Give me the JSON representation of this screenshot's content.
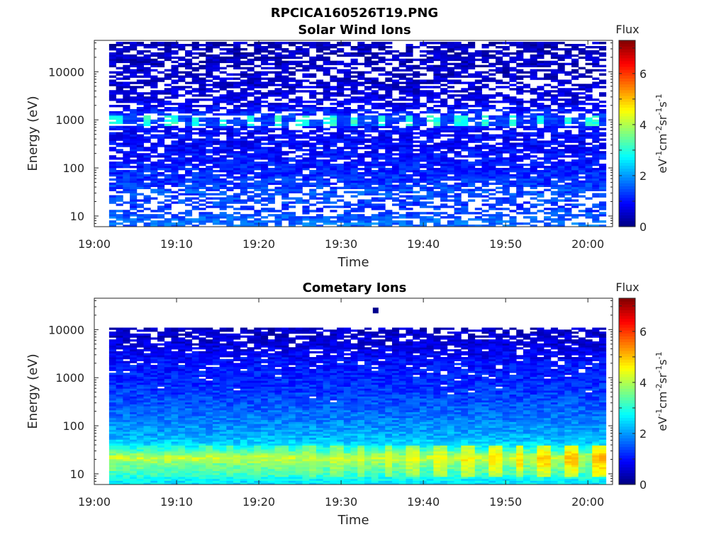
{
  "figure": {
    "title": "RPCICA160526T19.PNG"
  },
  "chart_data": [
    {
      "type": "heatmap",
      "title": "Solar Wind Ions",
      "xlabel": "Time",
      "ylabel": "Energy (eV)",
      "x_ticks": [
        "19:00",
        "19:10",
        "19:20",
        "19:30",
        "19:40",
        "19:50",
        "20:00"
      ],
      "x_range_minutes": [
        0,
        63
      ],
      "data_x_range_minutes": [
        1.8,
        62.2
      ],
      "y_scale": "log",
      "y_ticks": [
        "10",
        "100",
        "1000",
        "10000"
      ],
      "y_range": [
        6,
        45000
      ],
      "colorbar": {
        "title": "Flux",
        "label": "eV-1cm-2sr-1s-1",
        "ticks": [
          "0",
          "2",
          "4",
          "6"
        ],
        "range": [
          0,
          7.3
        ],
        "colormap": "jet"
      },
      "profile": {
        "description_values": "log flux by energy band",
        "energy_levels": [
          7,
          9,
          12,
          16,
          22,
          30,
          45,
          70,
          110,
          180,
          300,
          500,
          800,
          1000,
          1300,
          2000,
          3500,
          6000,
          10000,
          18000,
          32000
        ],
        "mean_flux": [
          1.7,
          1.6,
          1.4,
          1.3,
          1.4,
          1.5,
          1.3,
          1.2,
          1.1,
          1.0,
          0.9,
          0.9,
          0.95,
          2.6,
          1.2,
          0.8,
          0.6,
          0.55,
          0.5,
          0.45,
          0.4
        ],
        "gap_probability": [
          0.25,
          0.25,
          0.45,
          0.5,
          0.45,
          0.35,
          0.15,
          0.1,
          0.1,
          0.2,
          0.2,
          0.25,
          0.3,
          0.1,
          0.3,
          0.3,
          0.35,
          0.35,
          0.4,
          0.35,
          0.3
        ],
        "peak_band_energy": 1000,
        "peak_pulse_period_minutes": 3.2,
        "peak_flux": 3.3
      }
    },
    {
      "type": "heatmap",
      "title": "Cometary Ions",
      "xlabel": "Time",
      "ylabel": "Energy (eV)",
      "x_ticks": [
        "19:00",
        "19:10",
        "19:20",
        "19:30",
        "19:40",
        "19:50",
        "20:00"
      ],
      "x_range_minutes": [
        0,
        63
      ],
      "data_x_range_minutes": [
        1.8,
        62.2
      ],
      "y_scale": "log",
      "y_ticks": [
        "10",
        "100",
        "1000",
        "10000"
      ],
      "y_range": [
        6,
        45000
      ],
      "colorbar": {
        "title": "Flux",
        "label": "eV-1cm-2sr-1s-1",
        "ticks": [
          "0",
          "2",
          "4",
          "6"
        ],
        "range": [
          0,
          7.3
        ],
        "colormap": "jet"
      },
      "profile": {
        "energy_levels": [
          7,
          9,
          12,
          16,
          22,
          30,
          45,
          70,
          110,
          180,
          300,
          500,
          800,
          1300,
          2000,
          3500,
          6000,
          10000
        ],
        "mean_flux": [
          2.6,
          3.0,
          3.4,
          3.6,
          4.2,
          3.2,
          2.4,
          2.1,
          1.9,
          1.7,
          1.5,
          1.3,
          1.2,
          1.1,
          1.0,
          0.8,
          0.6,
          0.5
        ],
        "gap_probability": [
          0.0,
          0.0,
          0.0,
          0.0,
          0.0,
          0.0,
          0.0,
          0.0,
          0.0,
          0.0,
          0.0,
          0.02,
          0.03,
          0.05,
          0.08,
          0.12,
          0.2,
          0.3
        ],
        "pulse_period_minutes": 3.2,
        "max_flux_late": 5.4,
        "isolated_point": {
          "time_minutes": 34.2,
          "energy": 25000,
          "flux": 0.1
        }
      }
    }
  ]
}
